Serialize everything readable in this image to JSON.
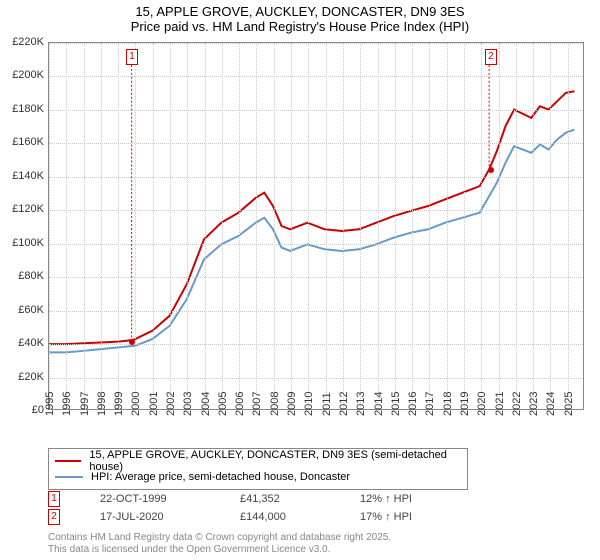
{
  "title_line1": "15, APPLE GROVE, AUCKLEY, DONCASTER, DN9 3ES",
  "title_line2": "Price paid vs. HM Land Registry's House Price Index (HPI)",
  "chart": {
    "type": "line",
    "xlim": [
      1995,
      2026
    ],
    "ylim": [
      0,
      220000
    ],
    "ytick_step": 20000,
    "yticks": [
      "£0",
      "£20K",
      "£40K",
      "£60K",
      "£80K",
      "£100K",
      "£120K",
      "£140K",
      "£160K",
      "£180K",
      "£200K",
      "£220K"
    ],
    "xticks": [
      1995,
      1996,
      1997,
      1998,
      1999,
      2000,
      2001,
      2002,
      2003,
      2004,
      2005,
      2006,
      2007,
      2008,
      2009,
      2010,
      2011,
      2012,
      2013,
      2014,
      2015,
      2016,
      2017,
      2018,
      2019,
      2020,
      2021,
      2022,
      2023,
      2024,
      2025
    ],
    "grid_color": "#cccccc",
    "background_color": "#ffffff",
    "series": [
      {
        "name": "subject",
        "color": "#cc0000",
        "width": 2,
        "data": [
          [
            1995,
            39000
          ],
          [
            1996,
            39000
          ],
          [
            1997,
            39500
          ],
          [
            1998,
            40000
          ],
          [
            1999,
            40500
          ],
          [
            1999.8,
            41352
          ],
          [
            2000,
            42000
          ],
          [
            2001,
            47000
          ],
          [
            2002,
            56000
          ],
          [
            2003,
            75000
          ],
          [
            2004,
            102000
          ],
          [
            2005,
            112000
          ],
          [
            2006,
            118000
          ],
          [
            2007,
            127000
          ],
          [
            2007.5,
            130000
          ],
          [
            2008,
            122000
          ],
          [
            2008.5,
            110000
          ],
          [
            2009,
            108000
          ],
          [
            2010,
            112000
          ],
          [
            2011,
            108000
          ],
          [
            2012,
            107000
          ],
          [
            2013,
            108000
          ],
          [
            2014,
            112000
          ],
          [
            2015,
            116000
          ],
          [
            2016,
            119000
          ],
          [
            2017,
            122000
          ],
          [
            2018,
            126000
          ],
          [
            2019,
            130000
          ],
          [
            2020,
            134000
          ],
          [
            2020.55,
            144000
          ],
          [
            2021,
            155000
          ],
          [
            2021.5,
            170000
          ],
          [
            2022,
            180000
          ],
          [
            2023,
            175000
          ],
          [
            2023.5,
            182000
          ],
          [
            2024,
            180000
          ],
          [
            2024.5,
            185000
          ],
          [
            2025,
            190000
          ],
          [
            2025.5,
            191000
          ]
        ]
      },
      {
        "name": "hpi",
        "color": "#6699cc",
        "width": 2,
        "data": [
          [
            1995,
            34000
          ],
          [
            1996,
            34000
          ],
          [
            1997,
            35000
          ],
          [
            1998,
            36000
          ],
          [
            1999,
            37000
          ],
          [
            2000,
            38000
          ],
          [
            2001,
            42000
          ],
          [
            2002,
            50000
          ],
          [
            2003,
            66000
          ],
          [
            2004,
            90000
          ],
          [
            2005,
            99000
          ],
          [
            2006,
            104000
          ],
          [
            2007,
            112000
          ],
          [
            2007.5,
            115000
          ],
          [
            2008,
            108000
          ],
          [
            2008.5,
            97000
          ],
          [
            2009,
            95000
          ],
          [
            2010,
            99000
          ],
          [
            2011,
            96000
          ],
          [
            2012,
            95000
          ],
          [
            2013,
            96000
          ],
          [
            2014,
            99000
          ],
          [
            2015,
            103000
          ],
          [
            2016,
            106000
          ],
          [
            2017,
            108000
          ],
          [
            2018,
            112000
          ],
          [
            2019,
            115000
          ],
          [
            2020,
            118000
          ],
          [
            2021,
            136000
          ],
          [
            2021.5,
            148000
          ],
          [
            2022,
            158000
          ],
          [
            2023,
            154000
          ],
          [
            2023.5,
            159000
          ],
          [
            2024,
            156000
          ],
          [
            2024.5,
            162000
          ],
          [
            2025,
            166000
          ],
          [
            2025.5,
            168000
          ]
        ]
      }
    ],
    "markers": [
      {
        "n": "1",
        "x": 1999.8,
        "y": 41352
      },
      {
        "n": "2",
        "x": 2020.55,
        "y": 144000
      }
    ]
  },
  "legend": {
    "subject": "15, APPLE GROVE, AUCKLEY, DONCASTER, DN9 3ES (semi-detached house)",
    "hpi": "HPI: Average price, semi-detached house, Doncaster"
  },
  "sales": [
    {
      "n": "1",
      "date": "22-OCT-1999",
      "price": "£41,352",
      "delta": "12% ↑ HPI"
    },
    {
      "n": "2",
      "date": "17-JUL-2020",
      "price": "£144,000",
      "delta": "17% ↑ HPI"
    }
  ],
  "attribution_line1": "Contains HM Land Registry data © Crown copyright and database right 2025.",
  "attribution_line2": "This data is licensed under the Open Government Licence v3.0."
}
